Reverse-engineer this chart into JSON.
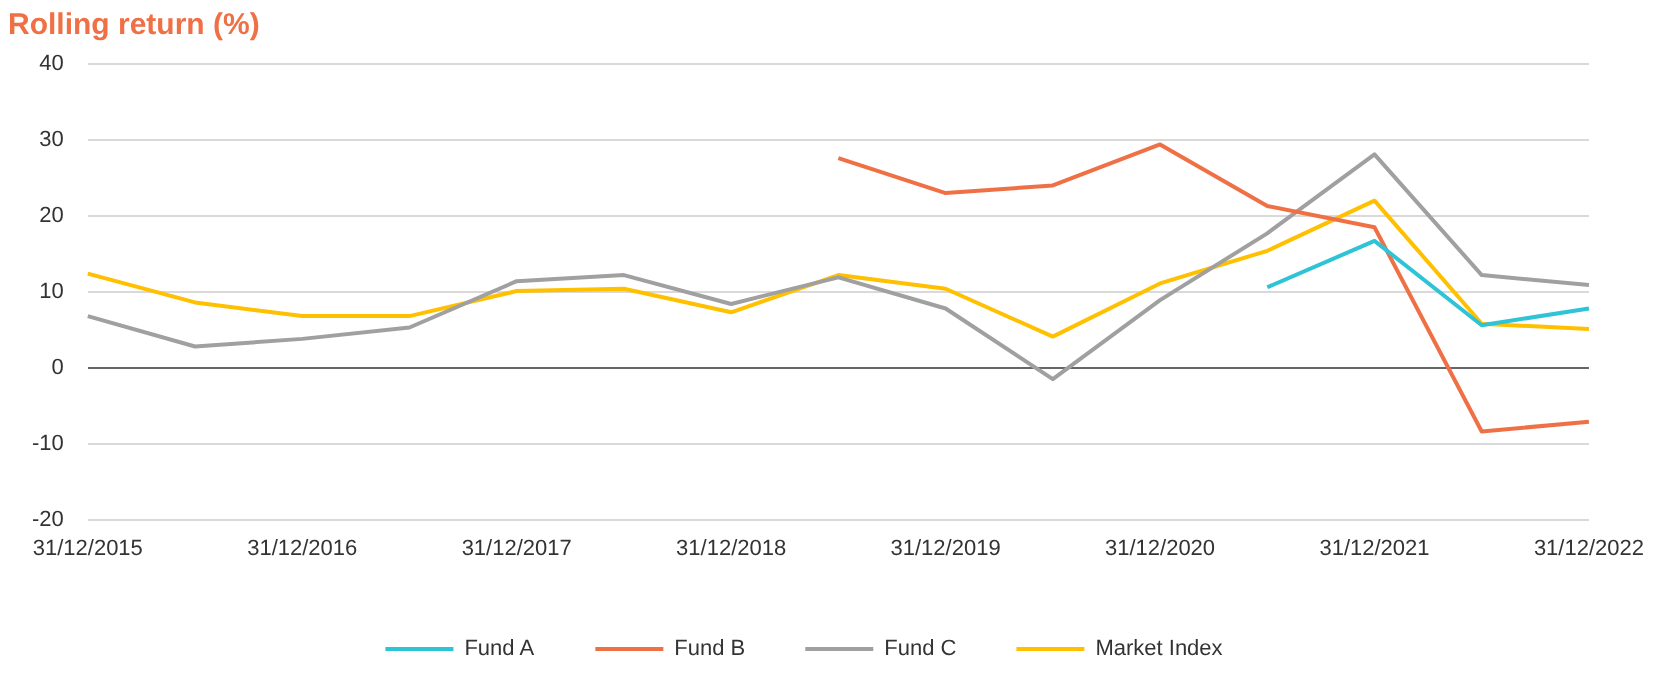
{
  "chart_data": {
    "type": "line",
    "title": "Rolling return (%)",
    "categories": [
      "31/12/2015",
      null,
      "31/12/2016",
      null,
      "31/12/2017",
      null,
      "31/12/2018",
      null,
      "31/12/2019",
      null,
      "31/12/2020",
      null,
      "31/12/2021",
      null,
      "31/12/2022"
    ],
    "series": [
      {
        "name": "Fund A",
        "color": "#2ec4d6",
        "values": [
          null,
          null,
          null,
          null,
          null,
          null,
          null,
          null,
          null,
          null,
          null,
          10.6,
          16.7,
          5.6,
          7.8
        ]
      },
      {
        "name": "Fund B",
        "color": "#f07045",
        "values": [
          null,
          null,
          null,
          null,
          null,
          null,
          null,
          27.6,
          23,
          24,
          29.4,
          21.3,
          18.5,
          -8.4,
          -7.1
        ]
      },
      {
        "name": "Fund C",
        "color": "#a0a0a0",
        "values": [
          6.8,
          2.8,
          3.8,
          5.3,
          11.4,
          12.2,
          8.4,
          11.9,
          7.8,
          -1.5,
          8.9,
          17.7,
          28.1,
          12.2,
          10.9
        ]
      },
      {
        "name": "Market Index",
        "color": "#ffc000",
        "values": [
          12.4,
          8.6,
          6.8,
          6.8,
          10.1,
          10.4,
          7.3,
          12.2,
          10.4,
          4.1,
          11.1,
          15.4,
          22,
          5.8,
          5.1
        ]
      }
    ],
    "ylim": [
      -20,
      40
    ],
    "yticks": [
      -20,
      -10,
      0,
      10,
      20,
      30,
      40
    ],
    "grid": "y",
    "legend": "bottom",
    "marker": "none",
    "line_style": "solid"
  }
}
